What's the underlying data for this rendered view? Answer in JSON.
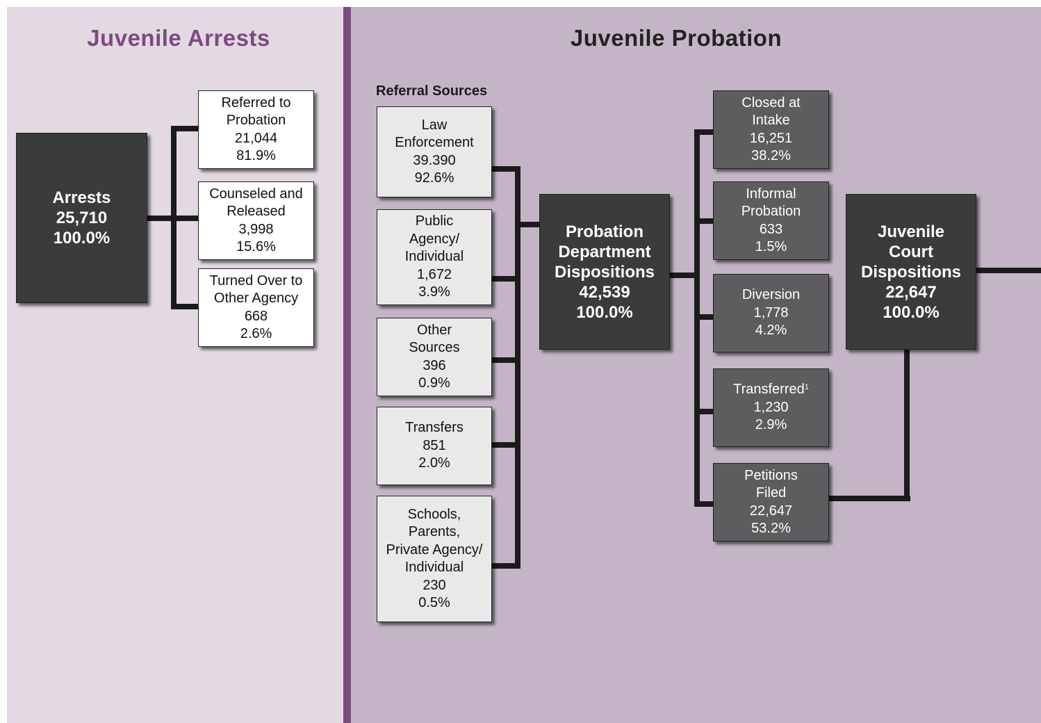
{
  "arrests": {
    "title": "Juvenile Arrests",
    "root": {
      "lines": [
        "Arrests"
      ],
      "count": "25,710",
      "percent": "100.0%"
    },
    "outcomes": [
      {
        "lines": [
          "Referred to",
          "Probation"
        ],
        "count": "21,044",
        "percent": "81.9%"
      },
      {
        "lines": [
          "Counseled and",
          "Released"
        ],
        "count": "3,998",
        "percent": "15.6%"
      },
      {
        "lines": [
          "Turned Over to",
          "Other Agency"
        ],
        "count": "668",
        "percent": "2.6%"
      }
    ]
  },
  "probation": {
    "title": "Juvenile Probation",
    "referral_sources": {
      "heading": "Referral Sources",
      "items": [
        {
          "lines": [
            "Law",
            "Enforcement"
          ],
          "count": "39.390",
          "percent": "92.6%"
        },
        {
          "lines": [
            "Public",
            "Agency/",
            "Individual"
          ],
          "count": "1,672",
          "percent": "3.9%"
        },
        {
          "lines": [
            "Other",
            "Sources"
          ],
          "count": "396",
          "percent": "0.9%"
        },
        {
          "lines": [
            "Transfers"
          ],
          "count": "851",
          "percent": "2.0%"
        },
        {
          "lines": [
            "Schools,",
            "Parents,",
            "Private Agency/",
            "Individual"
          ],
          "count": "230",
          "percent": "0.5%"
        }
      ]
    },
    "department": {
      "lines": [
        "Probation",
        "Department",
        "Dispositions"
      ],
      "count": "42,539",
      "percent": "100.0%"
    },
    "dispositions": [
      {
        "lines": [
          "Closed at",
          "Intake"
        ],
        "count": "16,251",
        "percent": "38.2%"
      },
      {
        "lines": [
          "Informal",
          "Probation"
        ],
        "count": "633",
        "percent": "1.5%"
      },
      {
        "lines": [
          "Diversion"
        ],
        "count": "1,778",
        "percent": "4.2%"
      },
      {
        "lines": [
          "Transferred"
        ],
        "footnote": "1",
        "count": "1,230",
        "percent": "2.9%"
      },
      {
        "lines": [
          "Petitions",
          "Filed"
        ],
        "count": "22,647",
        "percent": "53.2%"
      }
    ],
    "court": {
      "lines": [
        "Juvenile",
        "Court",
        "Dispositions"
      ],
      "count": "22,647",
      "percent": "100.0%"
    }
  }
}
